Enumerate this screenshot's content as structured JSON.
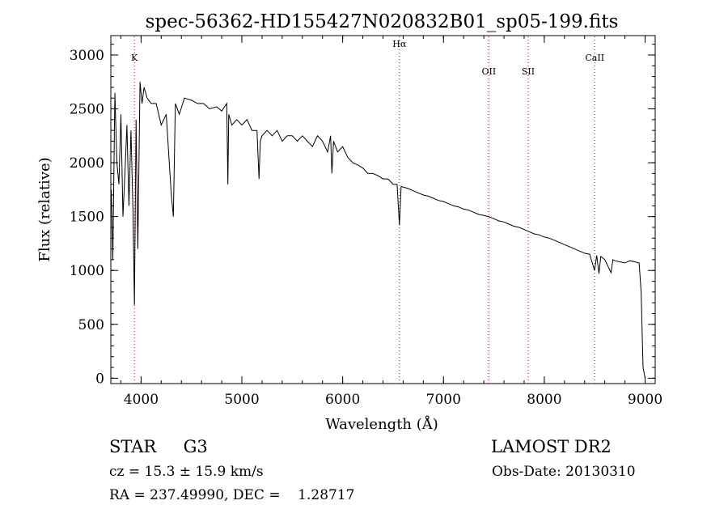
{
  "chart_data": {
    "type": "line",
    "title": "spec-56362-HD155427N020832B01_sp05-199.fits",
    "xlabel": "Wavelength (Å)",
    "ylabel": "Flux (relative)",
    "xlim": [
      3700,
      9100
    ],
    "ylim": [
      -50,
      3180
    ],
    "xticks": [
      4000,
      5000,
      6000,
      7000,
      8000,
      9000
    ],
    "yticks": [
      0,
      500,
      1000,
      1500,
      2000,
      2500,
      3000
    ],
    "grid": false,
    "line_color": "#000000",
    "line_marker_color": "#cc0000",
    "lines": [
      {
        "label": "K",
        "wavelength": 3934
      },
      {
        "label": "Hα",
        "wavelength": 6563
      },
      {
        "label": "OII",
        "wavelength": 7450
      },
      {
        "label": "SII",
        "wavelength": 7840
      },
      {
        "label": "CaII",
        "wavelength": 8500
      }
    ],
    "series": [
      {
        "x": [
          3705,
          3720,
          3740,
          3760,
          3780,
          3800,
          3820,
          3840,
          3860,
          3880,
          3900,
          3920,
          3934,
          3950,
          3968,
          3990,
          4010,
          4030,
          4060,
          4100,
          4150,
          4200,
          4250,
          4300,
          4320,
          4340,
          4380,
          4430,
          4500,
          4560,
          4620,
          4680,
          4750,
          4800,
          4850,
          4861,
          4870,
          4900,
          4950,
          5000,
          5050,
          5100,
          5150,
          5170,
          5183,
          5200,
          5250,
          5300,
          5350,
          5400,
          5450,
          5500,
          5550,
          5600,
          5650,
          5700,
          5750,
          5800,
          5850,
          5880,
          5893,
          5910,
          5950,
          6000,
          6050,
          6100,
          6150,
          6200,
          6250,
          6300,
          6350,
          6400,
          6450,
          6500,
          6540,
          6563,
          6580,
          6650,
          6700,
          6750,
          6800,
          6850,
          6900,
          6950,
          7000,
          7050,
          7100,
          7150,
          7200,
          7250,
          7300,
          7350,
          7400,
          7450,
          7500,
          7550,
          7600,
          7650,
          7700,
          7750,
          7800,
          7850,
          7900,
          7950,
          8000,
          8050,
          8100,
          8150,
          8200,
          8250,
          8300,
          8350,
          8400,
          8450,
          8498,
          8520,
          8542,
          8560,
          8600,
          8662,
          8680,
          8700,
          8750,
          8800,
          8850,
          8900,
          8940,
          8960,
          8980,
          9000
        ],
        "y": [
          1750,
          1100,
          2650,
          2000,
          1800,
          2450,
          1500,
          1900,
          2350,
          1600,
          2300,
          1550,
          680,
          2400,
          1200,
          2750,
          2550,
          2700,
          2600,
          2550,
          2550,
          2350,
          2450,
          1700,
          1500,
          2550,
          2450,
          2600,
          2580,
          2550,
          2550,
          2500,
          2520,
          2480,
          2550,
          1800,
          2450,
          2350,
          2400,
          2350,
          2400,
          2300,
          2300,
          1850,
          2200,
          2250,
          2300,
          2250,
          2300,
          2200,
          2250,
          2250,
          2200,
          2250,
          2200,
          2150,
          2250,
          2200,
          2100,
          2250,
          1900,
          2200,
          2100,
          2150,
          2050,
          2000,
          1980,
          1950,
          1900,
          1900,
          1880,
          1850,
          1850,
          1800,
          1800,
          1420,
          1780,
          1760,
          1740,
          1720,
          1700,
          1690,
          1670,
          1650,
          1640,
          1620,
          1600,
          1590,
          1570,
          1560,
          1540,
          1520,
          1510,
          1500,
          1480,
          1460,
          1450,
          1430,
          1410,
          1400,
          1380,
          1360,
          1340,
          1330,
          1310,
          1300,
          1280,
          1260,
          1240,
          1220,
          1200,
          1180,
          1160,
          1150,
          1000,
          1140,
          970,
          1130,
          1100,
          980,
          1100,
          1090,
          1080,
          1070,
          1090,
          1080,
          1070,
          800,
          100,
          0
        ]
      }
    ]
  },
  "footer": {
    "object": "STAR     G3",
    "survey": "LAMOST DR2",
    "cz": "cz = 15.3 ± 15.9 km/s",
    "obs_date": "Obs-Date: 20130310",
    "coords": "RA = 237.49990, DEC =    1.28717"
  }
}
